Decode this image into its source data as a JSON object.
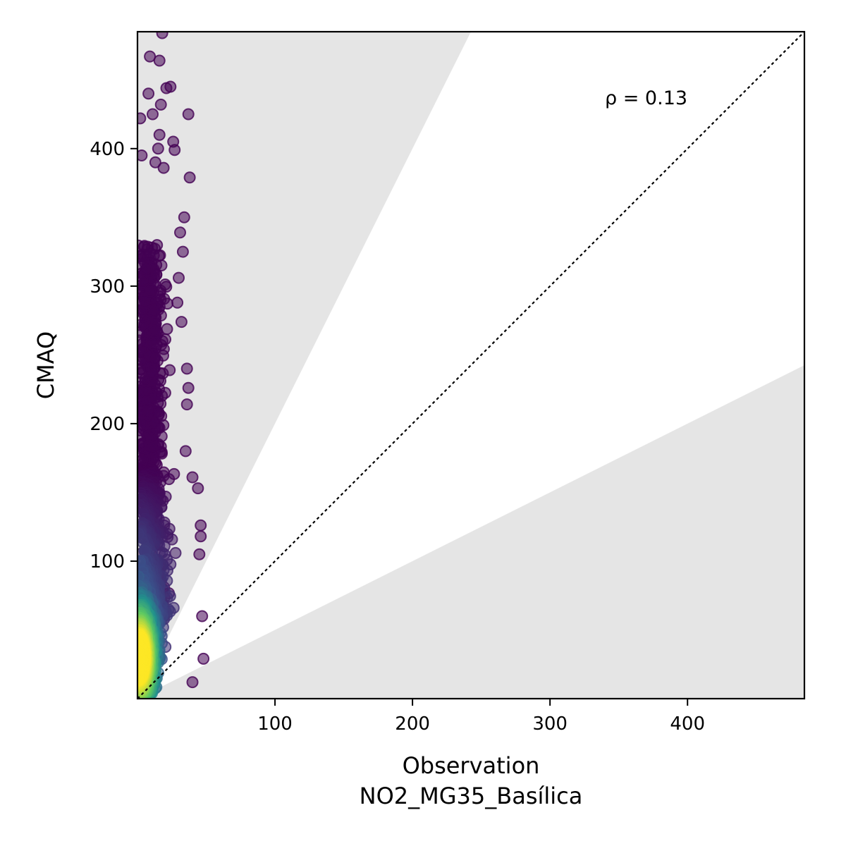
{
  "chart_data": {
    "type": "scatter",
    "title": "",
    "xlabel": "Observation",
    "xlabel_sub": "NO2_MG35_Basílica",
    "ylabel": "CMAQ",
    "xlim": [
      0,
      485
    ],
    "ylim": [
      0,
      485
    ],
    "xticks": [
      100,
      200,
      300,
      400
    ],
    "yticks": [
      100,
      200,
      300,
      400
    ],
    "xtick_labels": [
      "100",
      "200",
      "300",
      "400"
    ],
    "ytick_labels": [
      "100",
      "200",
      "300",
      "400"
    ],
    "annotation": "ρ = 0.13",
    "grid": false,
    "reference_line": "1:1 dotted",
    "shaded_regions": "outside factor-of-2 band (y > 2x and y < x/2)",
    "colormap": "viridis (point density)",
    "colors": {
      "shade": "#e5e5e5",
      "low_density": "#440154",
      "mid_density": "#31688e",
      "high_density": "#fde725"
    },
    "points": {
      "description_range_x": [
        0,
        50
      ],
      "description_range_y": [
        0,
        485
      ],
      "outliers": [
        [
          18,
          484
        ],
        [
          9,
          467
        ],
        [
          16,
          464
        ],
        [
          21,
          444
        ],
        [
          24,
          445
        ],
        [
          8,
          440
        ],
        [
          17,
          432
        ],
        [
          37,
          425
        ],
        [
          2,
          422
        ],
        [
          11,
          425
        ],
        [
          16,
          410
        ],
        [
          26,
          405
        ],
        [
          15,
          400
        ],
        [
          27,
          399
        ],
        [
          3,
          395
        ],
        [
          13,
          390
        ],
        [
          19,
          386
        ],
        [
          38,
          379
        ],
        [
          34,
          350
        ],
        [
          31,
          339
        ],
        [
          33,
          325
        ],
        [
          30,
          306
        ],
        [
          29,
          288
        ],
        [
          32,
          274
        ],
        [
          36,
          240
        ],
        [
          37,
          226
        ],
        [
          36,
          214
        ],
        [
          35,
          180
        ],
        [
          40,
          161
        ],
        [
          44,
          153
        ],
        [
          46,
          126
        ],
        [
          46,
          118
        ],
        [
          45,
          105
        ],
        [
          47,
          60
        ],
        [
          48,
          29
        ],
        [
          40,
          12
        ]
      ]
    }
  }
}
